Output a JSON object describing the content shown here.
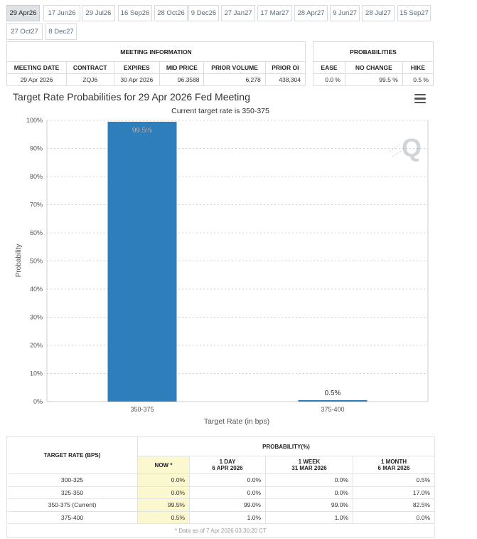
{
  "tabs": [
    "29 Apr26",
    "17 Jun26",
    "29 Jul26",
    "16 Sep26",
    "28 Oct26",
    "9 Dec26",
    "27 Jan27",
    "17 Mar27",
    "28 Apr27",
    "9 Jun27",
    "28 Jul27",
    "15 Sep27",
    "27 Oct27",
    "8 Dec27"
  ],
  "active_tab": "29 Apr26",
  "meeting_info": {
    "title": "MEETING INFORMATION",
    "headers": [
      "MEETING DATE",
      "CONTRACT",
      "EXPIRES",
      "MID PRICE",
      "PRIOR VOLUME",
      "PRIOR OI"
    ],
    "row": [
      "29 Apr 2026",
      "ZQJ6",
      "30 Apr 2026",
      "96.3588",
      "6,278",
      "438,304"
    ]
  },
  "probabilities": {
    "title": "PROBABILITIES",
    "headers": [
      "EASE",
      "NO CHANGE",
      "HIKE"
    ],
    "row": [
      "0.0 %",
      "99.5 %",
      "0.5 %"
    ]
  },
  "chart": {
    "title": "Target Rate Probabilities for 29 Apr 2026 Fed Meeting",
    "subtitle": "Current target rate is 350-375",
    "menu_icon": "hamburger-menu-icon",
    "watermark_icon": "q-watermark-icon"
  },
  "chart_data": {
    "type": "bar",
    "title": "Target Rate Probabilities for 29 Apr 2026 Fed Meeting",
    "subtitle": "Current target rate is 350-375",
    "categories": [
      "350-375",
      "375-400"
    ],
    "values": [
      99.5,
      0.5
    ],
    "data_labels": [
      "99.5%",
      "0.5%"
    ],
    "xlabel": "Target Rate (in bps)",
    "ylabel": "Probability",
    "ylim": [
      0,
      100
    ],
    "yticks": [
      0,
      10,
      20,
      30,
      40,
      50,
      60,
      70,
      80,
      90,
      100
    ],
    "ytick_labels": [
      "0%",
      "10%",
      "20%",
      "30%",
      "40%",
      "50%",
      "60%",
      "70%",
      "80%",
      "90%",
      "100%"
    ],
    "grid": true,
    "bar_color": "#2f7ebc"
  },
  "prob_table": {
    "header_left": "TARGET RATE (BPS)",
    "header_group": "PROBABILITY(%)",
    "columns": [
      {
        "line1": "NOW *",
        "line2": ""
      },
      {
        "line1": "1 DAY",
        "line2": "6 APR 2026"
      },
      {
        "line1": "1 WEEK",
        "line2": "31 MAR 2026"
      },
      {
        "line1": "1 MONTH",
        "line2": "6 MAR 2026"
      }
    ],
    "rows": [
      {
        "rate": "300-325",
        "now": "0.0%",
        "day": "0.0%",
        "week": "0.0%",
        "month": "0.5%"
      },
      {
        "rate": "325-350",
        "now": "0.0%",
        "day": "0.0%",
        "week": "0.0%",
        "month": "17.0%"
      },
      {
        "rate": "350-375 (Current)",
        "now": "99.5%",
        "day": "99.0%",
        "week": "99.0%",
        "month": "82.5%"
      },
      {
        "rate": "375-400",
        "now": "0.5%",
        "day": "1.0%",
        "week": "1.0%",
        "month": "0.0%"
      }
    ],
    "note": "* Data as of 7 Apr 2026 03:30:20 CT"
  },
  "colors": {
    "bar": "#2f7ebc",
    "now_highlight": "#fbf8cf",
    "active_tab": "#dfe3e7"
  }
}
